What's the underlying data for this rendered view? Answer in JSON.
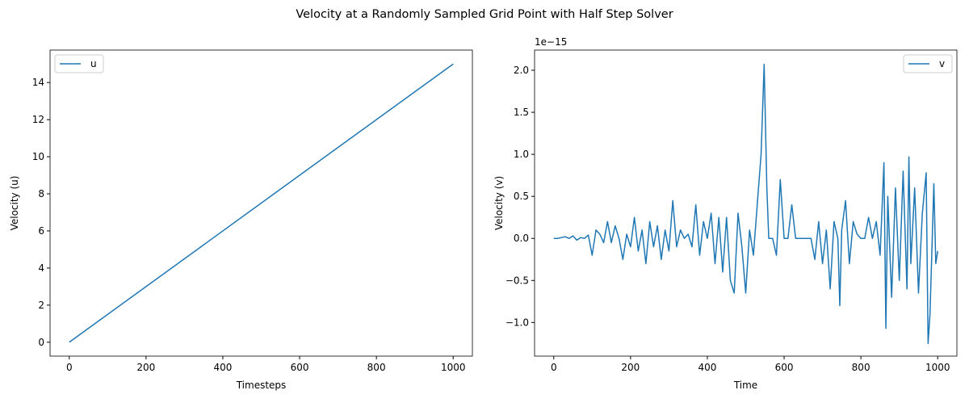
{
  "title": "Velocity at a Randomly Sampled Grid Point with Half Step Solver",
  "chart_data": [
    {
      "type": "line",
      "xlabel": "Timesteps",
      "ylabel": "Velocity (u)",
      "x": [
        0,
        1000
      ],
      "series": [
        {
          "name": "u",
          "color": "#1f77b4",
          "values": [
            0,
            15
          ]
        }
      ],
      "xlim": [
        -50,
        1050
      ],
      "xticks": [
        0,
        200,
        400,
        600,
        800,
        1000
      ],
      "ylim": [
        -0.75,
        15.75
      ],
      "yticks": [
        0,
        2,
        4,
        6,
        8,
        10,
        12,
        14
      ],
      "legend": "upper-left"
    },
    {
      "type": "line",
      "xlabel": "Time",
      "ylabel": "Velocity (v)",
      "y_offset_label": "1e−15",
      "x": [
        0,
        10,
        20,
        30,
        40,
        50,
        60,
        70,
        80,
        90,
        100,
        110,
        120,
        130,
        140,
        150,
        160,
        170,
        180,
        190,
        200,
        210,
        220,
        230,
        240,
        250,
        260,
        270,
        280,
        290,
        300,
        310,
        320,
        330,
        340,
        350,
        360,
        370,
        380,
        390,
        400,
        410,
        420,
        430,
        440,
        450,
        460,
        470,
        480,
        490,
        500,
        510,
        520,
        530,
        540,
        548,
        555,
        560,
        570,
        580,
        590,
        600,
        610,
        620,
        630,
        640,
        650,
        660,
        670,
        680,
        690,
        700,
        710,
        720,
        730,
        740,
        745,
        750,
        760,
        770,
        780,
        790,
        800,
        810,
        820,
        830,
        840,
        850,
        860,
        865,
        870,
        880,
        890,
        900,
        910,
        920,
        925,
        930,
        940,
        950,
        960,
        970,
        975,
        980,
        990,
        995,
        1000
      ],
      "series": [
        {
          "name": "v",
          "color": "#1f77b4",
          "values": [
            0,
            0,
            0.01,
            0.02,
            0.0,
            0.03,
            -0.02,
            0.01,
            0.0,
            0.04,
            -0.2,
            0.1,
            0.05,
            -0.05,
            0.2,
            -0.05,
            0.15,
            0,
            -0.25,
            0.05,
            -0.1,
            0.25,
            -0.15,
            0.1,
            -0.3,
            0.2,
            -0.1,
            0.15,
            -0.25,
            0.1,
            -0.15,
            0.45,
            -0.1,
            0.1,
            0.0,
            0.05,
            -0.1,
            0.4,
            -0.2,
            0.2,
            0.0,
            0.3,
            -0.3,
            0.25,
            -0.4,
            0.25,
            -0.5,
            -0.65,
            0.3,
            -0.1,
            -0.65,
            0.1,
            -0.2,
            0.4,
            1.0,
            2.07,
            0.6,
            0.0,
            0.0,
            -0.2,
            0.7,
            0.0,
            0.0,
            0.4,
            0.0,
            0.0,
            0.0,
            0.0,
            0.0,
            -0.25,
            0.2,
            -0.3,
            0.1,
            -0.6,
            0.2,
            0.0,
            -0.8,
            0.1,
            0.45,
            -0.3,
            0.2,
            0.05,
            0.0,
            0.0,
            0.25,
            0.0,
            0.2,
            -0.2,
            0.9,
            -1.07,
            0.5,
            -0.7,
            0.6,
            -0.5,
            0.8,
            -0.6,
            0.97,
            -0.3,
            0.6,
            -0.65,
            0.3,
            0.78,
            -1.25,
            -0.9,
            0.65,
            -0.3,
            -0.15
          ]
        }
      ],
      "xlim": [
        -50,
        1050
      ],
      "xticks": [
        0,
        200,
        400,
        600,
        800,
        1000
      ],
      "ylim": [
        -1.4,
        2.24
      ],
      "yticks": [
        {
          "value": -1,
          "label": "−1.0"
        },
        {
          "value": -0.5,
          "label": "−0.5"
        },
        {
          "value": 0,
          "label": "0.0"
        },
        0.5,
        {
          "value": 1,
          "label": "1.0"
        },
        1.5,
        {
          "value": 2,
          "label": "2.0"
        }
      ],
      "legend": "upper-right"
    }
  ]
}
